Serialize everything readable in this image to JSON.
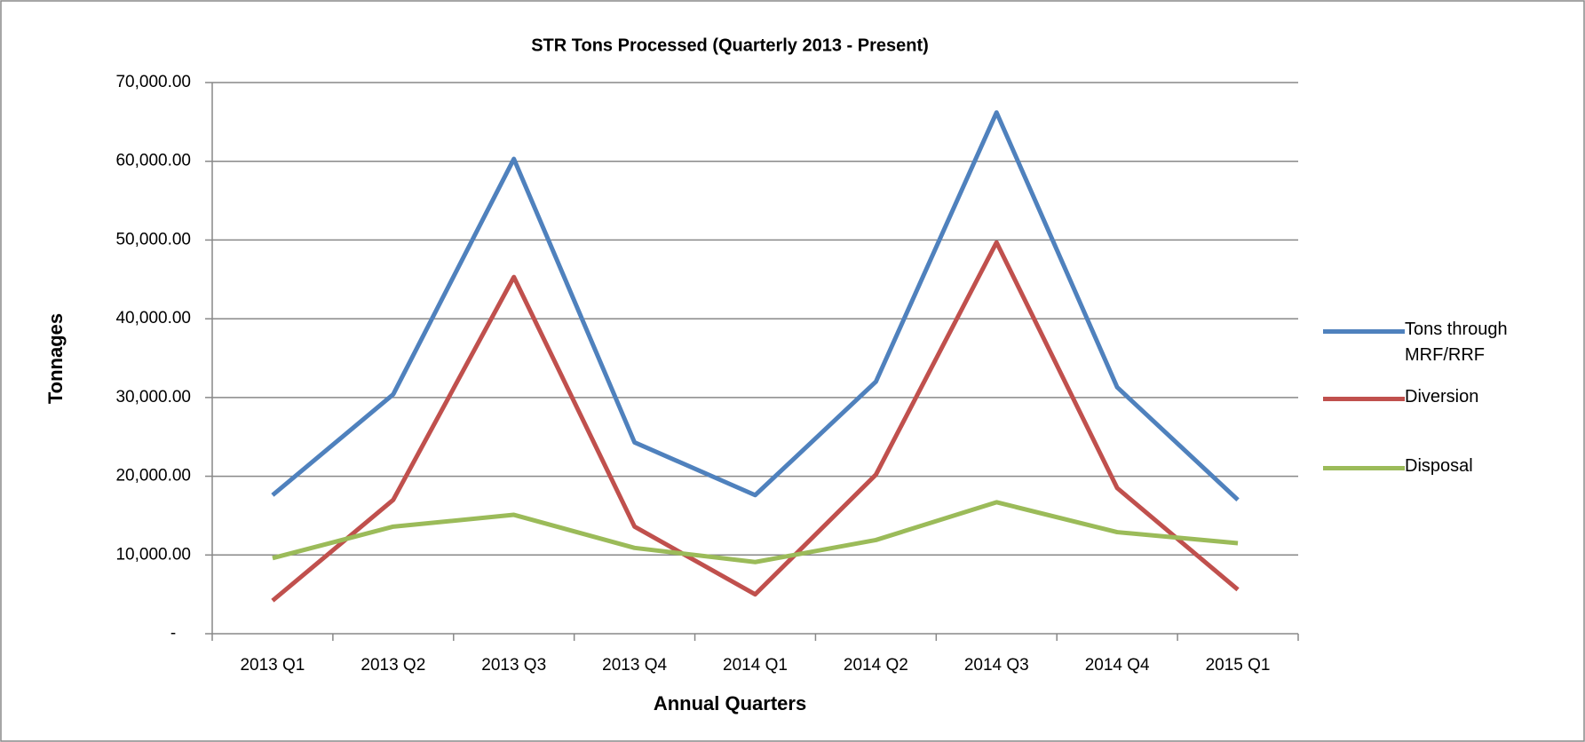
{
  "chart_data": {
    "type": "line",
    "title": "STR Tons Processed (Quarterly 2013 - Present)",
    "x_label": "Annual Quarters",
    "y_label": "Tonnages",
    "categories": [
      "2013 Q1",
      "2013 Q2",
      "2013 Q3",
      "2013 Q4",
      "2014 Q1",
      "2014 Q2",
      "2014 Q3",
      "2014 Q4",
      "2015 Q1"
    ],
    "series": [
      {
        "name": "Tons through MRF/RRF",
        "color": "#4f81bd",
        "values": [
          17600,
          30400,
          60300,
          24300,
          17600,
          32000,
          66200,
          31300,
          17000
        ]
      },
      {
        "name": "Diversion",
        "color": "#c0504d",
        "values": [
          4200,
          17000,
          45300,
          13600,
          5000,
          20200,
          49700,
          18500,
          5600
        ]
      },
      {
        "name": "Disposal",
        "color": "#9bbb59",
        "values": [
          9600,
          13600,
          15100,
          10900,
          9100,
          11900,
          16700,
          12900,
          11500
        ]
      }
    ],
    "ylim": [
      0,
      70000
    ],
    "yticks": [
      {
        "value": 0,
        "label": "-"
      },
      {
        "value": 10000,
        "label": "10,000.00"
      },
      {
        "value": 20000,
        "label": "20,000.00"
      },
      {
        "value": 30000,
        "label": "30,000.00"
      },
      {
        "value": 40000,
        "label": "40,000.00"
      },
      {
        "value": 50000,
        "label": "50,000.00"
      },
      {
        "value": 60000,
        "label": "60,000.00"
      },
      {
        "value": 70000,
        "label": "70,000.00"
      }
    ],
    "grid": true,
    "legend_position": "right"
  }
}
